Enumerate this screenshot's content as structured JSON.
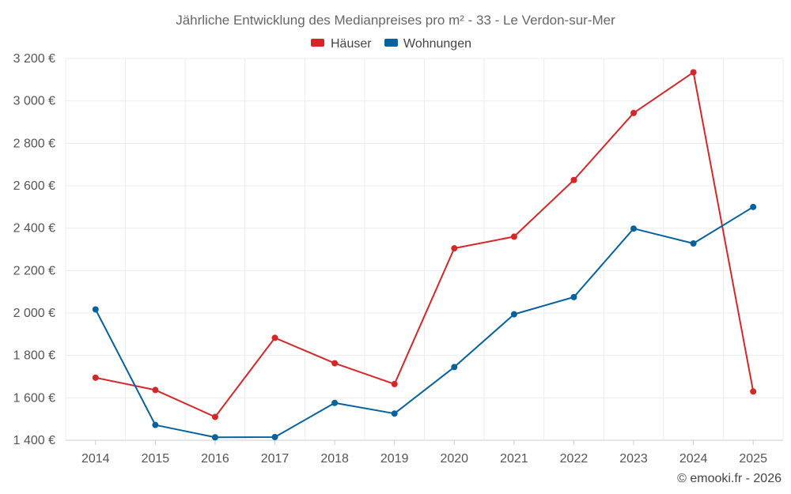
{
  "chart_data": {
    "type": "line",
    "title": "Jährliche Entwicklung des Medianpreises pro m² - 33 - Le Verdon-sur-Mer",
    "categories": [
      "2014",
      "2015",
      "2016",
      "2017",
      "2018",
      "2019",
      "2020",
      "2021",
      "2022",
      "2023",
      "2024",
      "2025"
    ],
    "y_ticks": [
      1400,
      1600,
      1800,
      2000,
      2200,
      2400,
      2600,
      2800,
      3000,
      3200
    ],
    "y_tick_labels": [
      "1 400 €",
      "1 600 €",
      "1 800 €",
      "2 000 €",
      "2 200 €",
      "2 400 €",
      "2 600 €",
      "2 800 €",
      "3 000 €",
      "3 200 €"
    ],
    "ylim": [
      1400,
      3200
    ],
    "xlabel": "",
    "ylabel": "",
    "legend_position": "top-center",
    "grid": true,
    "series": [
      {
        "name": "Häuser",
        "color": "#d62728",
        "values": [
          1695,
          1637,
          1510,
          1883,
          1763,
          1665,
          2305,
          2360,
          2627,
          2943,
          3135,
          1630
        ]
      },
      {
        "name": "Wohnungen",
        "color": "#05629d",
        "values": [
          2017,
          1472,
          1414,
          1415,
          1576,
          1526,
          1745,
          1994,
          2075,
          2398,
          2328,
          2500
        ]
      }
    ]
  },
  "credit": "© emooki.fr - 2026"
}
